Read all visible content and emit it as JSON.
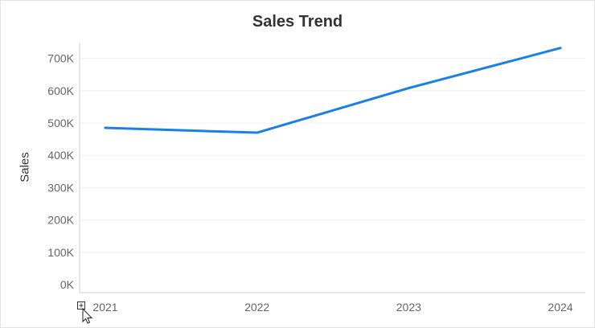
{
  "chart_data": {
    "type": "line",
    "title": "Sales Trend",
    "xlabel": "",
    "ylabel": "Sales",
    "categories": [
      "2021",
      "2022",
      "2023",
      "2024"
    ],
    "series": [
      {
        "values": [
          485000,
          470000,
          608000,
          732000
        ]
      }
    ],
    "ylim": [
      0,
      760000
    ],
    "yticks": [
      0,
      100000,
      200000,
      300000,
      400000,
      500000,
      600000,
      700000
    ],
    "ytick_labels": [
      "0K",
      "100K",
      "200K",
      "300K",
      "400K",
      "500K",
      "600K",
      "700K"
    ],
    "grid": true,
    "line_color": "#1a80e6"
  },
  "toolbar": {
    "expand_icon": "plus-box-icon",
    "cursor_icon": "mouse-pointer-icon"
  }
}
